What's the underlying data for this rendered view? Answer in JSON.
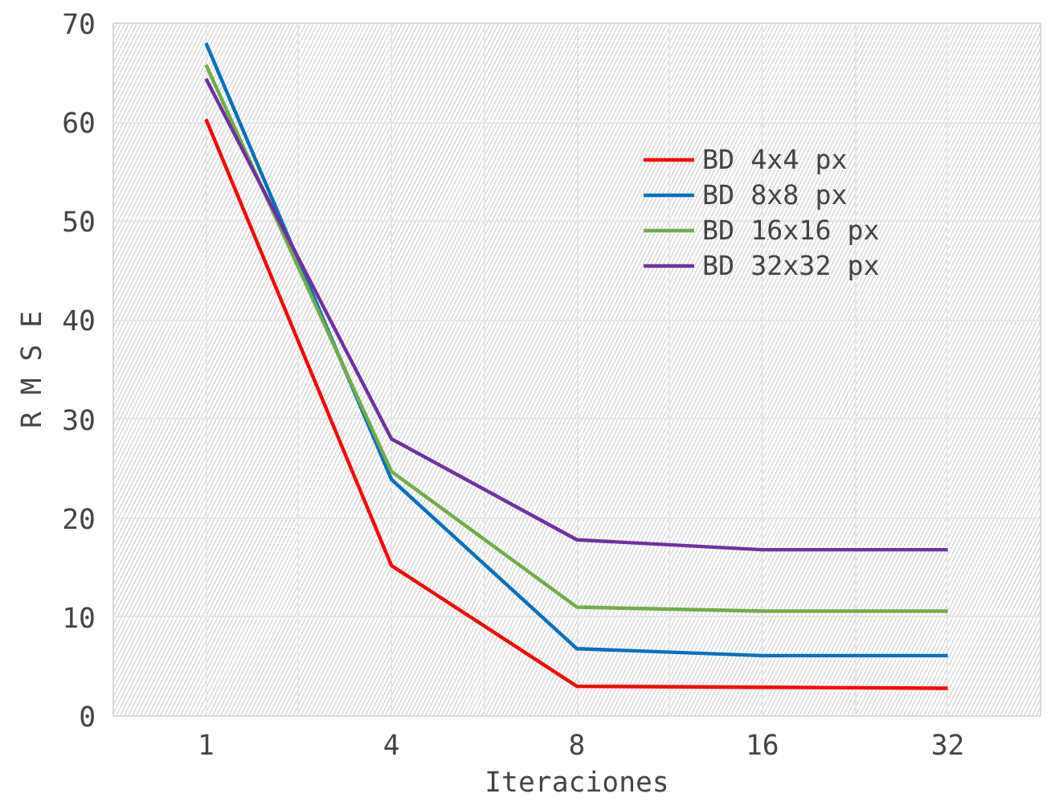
{
  "chart_data": {
    "type": "line",
    "xlabel": "Iteraciones",
    "ylabel": "R M S E",
    "categories": [
      "1",
      "4",
      "8",
      "16",
      "32"
    ],
    "series": [
      {
        "name": "BD 4x4 px",
        "color": "#ff0000",
        "values": [
          60.3,
          15.2,
          3.0,
          2.9,
          2.8
        ]
      },
      {
        "name": "BD 8x8 px",
        "color": "#0070c0",
        "values": [
          68.0,
          23.9,
          6.8,
          6.1,
          6.1
        ]
      },
      {
        "name": "BD 16x16 px",
        "color": "#70ad47",
        "values": [
          65.8,
          24.7,
          11.0,
          10.6,
          10.6
        ]
      },
      {
        "name": "BD 32x32 px",
        "color": "#7030a0",
        "values": [
          64.4,
          28.0,
          17.8,
          16.8,
          16.8
        ]
      }
    ],
    "ylim": [
      0,
      70
    ],
    "yticks": [
      0,
      10,
      20,
      30,
      40,
      50,
      60,
      70
    ],
    "grid": true,
    "legend": "right",
    "line_style": "solid",
    "marker": "none"
  }
}
